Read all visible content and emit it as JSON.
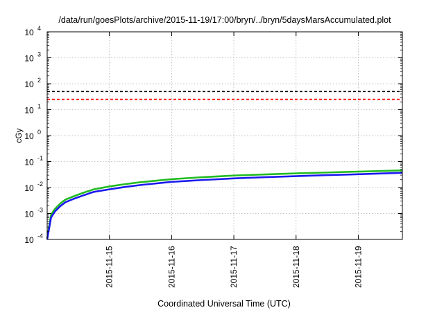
{
  "chart_data": {
    "type": "line",
    "title": "/data/run/goesPlots/archive/2015-11-19/17:00/bryn/../bryn/5daysMarsAccumulated.plot",
    "xlabel": "Coordinated Universal Time (UTC)",
    "ylabel": "cGy",
    "y_scale": "log",
    "ylim": [
      0.0001,
      10000
    ],
    "xlim": [
      "2015-11-14T00:00",
      "2015-11-19T17:00"
    ],
    "grid": true,
    "x_ticks": [
      "2015-11-15",
      "2015-11-16",
      "2015-11-17",
      "2015-11-18",
      "2015-11-19"
    ],
    "y_ticks": [
      {
        "value": 0.0001,
        "base": "10",
        "exp": "-4"
      },
      {
        "value": 0.001,
        "base": "10",
        "exp": "-3"
      },
      {
        "value": 0.01,
        "base": "10",
        "exp": "-2"
      },
      {
        "value": 0.1,
        "base": "10",
        "exp": "-1"
      },
      {
        "value": 1,
        "base": "10",
        "exp": "0"
      },
      {
        "value": 10,
        "base": "10",
        "exp": "1"
      },
      {
        "value": 100,
        "base": "10",
        "exp": "2"
      },
      {
        "value": 1000,
        "base": "10",
        "exp": "3"
      },
      {
        "value": 10000,
        "base": "10",
        "exp": "4"
      }
    ],
    "reference_lines": [
      {
        "value": 50,
        "color": "#000000",
        "style": "dashed"
      },
      {
        "value": 25,
        "color": "#ff0000",
        "style": "dashed"
      }
    ],
    "series": [
      {
        "color": "#22bb22",
        "x": [
          "2015-11-14T00:00",
          "2015-11-14T01:30",
          "2015-11-14T03:00",
          "2015-11-14T05:00",
          "2015-11-14T07:00",
          "2015-11-14T10:00",
          "2015-11-14T14:00",
          "2015-11-14T18:00",
          "2015-11-15T00:00",
          "2015-11-15T06:00",
          "2015-11-15T12:00",
          "2015-11-16T00:00",
          "2015-11-16T12:00",
          "2015-11-17T00:00",
          "2015-11-17T12:00",
          "2015-11-18T00:00",
          "2015-11-18T12:00",
          "2015-11-19T00:00",
          "2015-11-19T17:00"
        ],
        "values": [
          0.00011,
          0.0009,
          0.0015,
          0.0024,
          0.0034,
          0.0045,
          0.0063,
          0.0085,
          0.011,
          0.0135,
          0.016,
          0.021,
          0.025,
          0.029,
          0.032,
          0.035,
          0.038,
          0.041,
          0.046
        ]
      },
      {
        "color": "#1a1aee",
        "x": [
          "2015-11-14T00:00",
          "2015-11-14T01:30",
          "2015-11-14T03:00",
          "2015-11-14T05:00",
          "2015-11-14T07:00",
          "2015-11-14T10:00",
          "2015-11-14T14:00",
          "2015-11-14T18:00",
          "2015-11-15T00:00",
          "2015-11-15T06:00",
          "2015-11-15T12:00",
          "2015-11-16T00:00",
          "2015-11-16T12:00",
          "2015-11-17T00:00",
          "2015-11-17T12:00",
          "2015-11-18T00:00",
          "2015-11-18T12:00",
          "2015-11-19T00:00",
          "2015-11-19T17:00"
        ],
        "values": [
          0.0001,
          0.0007,
          0.0012,
          0.0019,
          0.0027,
          0.0036,
          0.005,
          0.0068,
          0.0085,
          0.0105,
          0.0125,
          0.0165,
          0.0195,
          0.0225,
          0.025,
          0.0275,
          0.03,
          0.0325,
          0.037
        ]
      }
    ]
  }
}
